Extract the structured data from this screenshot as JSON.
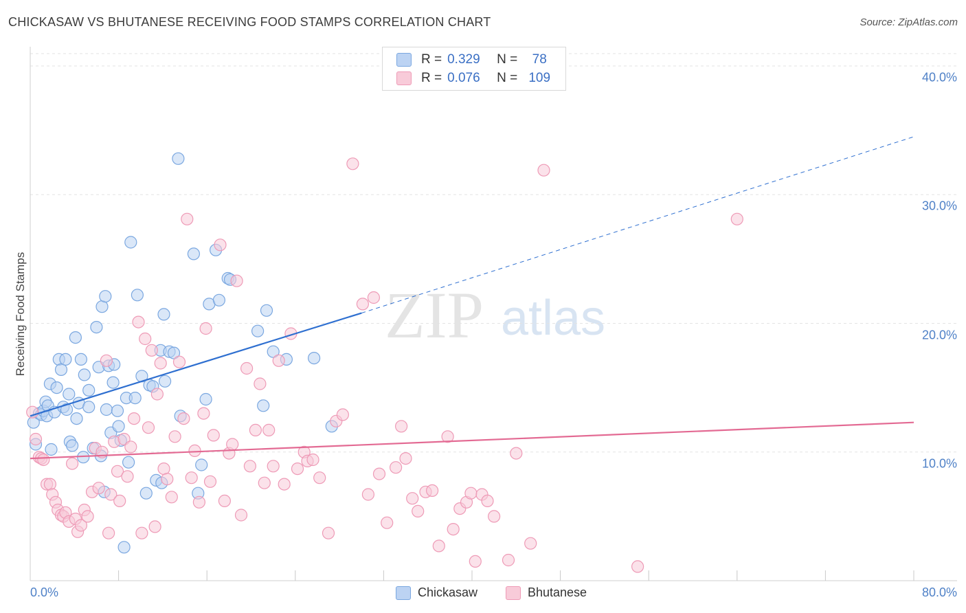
{
  "title": "CHICKASAW VS BHUTANESE RECEIVING FOOD STAMPS CORRELATION CHART",
  "source": "Source: ZipAtlas.com",
  "watermark": {
    "zip": "ZIP",
    "atlas": "atlas"
  },
  "legend": {
    "r_label": "R =",
    "n_label": "N =",
    "rows": [
      {
        "r": "0.329",
        "n": "78",
        "color": "#7aa7e0",
        "fill": "#bcd3f3"
      },
      {
        "r": "0.076",
        "n": "109",
        "color": "#ee9ab6",
        "fill": "#f8cbd9"
      }
    ]
  },
  "bottom_legend": [
    "Chickasaw",
    "Bhutanese"
  ],
  "chart_data": {
    "type": "scatter",
    "title": "CHICKASAW VS BHUTANESE RECEIVING FOOD STAMPS CORRELATION CHART",
    "xlabel": "",
    "ylabel": "Receiving Food Stamps",
    "xlim": [
      0,
      80
    ],
    "ylim": [
      0,
      40
    ],
    "x_tick_labels": [
      "0.0%",
      "80.0%"
    ],
    "y_ticks": [
      10,
      20,
      30,
      40
    ],
    "y_tick_labels": [
      "10.0%",
      "20.0%",
      "30.0%",
      "40.0%"
    ],
    "grid": true,
    "legend_position": "top-center",
    "series": [
      {
        "name": "Chickasaw",
        "color": "#7aa7e0",
        "fill": "#bcd3f3",
        "line_color": "#2e6fd0",
        "trend": {
          "x": [
            0,
            30
          ],
          "y": [
            12.8,
            20.8
          ],
          "extend_dashed_to": [
            80,
            34.5
          ]
        },
        "points": [
          [
            0.3,
            12.3
          ],
          [
            0.5,
            10.6
          ],
          [
            0.8,
            13.0
          ],
          [
            1.0,
            12.9
          ],
          [
            1.2,
            13.2
          ],
          [
            1.4,
            13.9
          ],
          [
            1.5,
            12.8
          ],
          [
            1.6,
            13.6
          ],
          [
            1.8,
            15.3
          ],
          [
            1.9,
            10.2
          ],
          [
            2.2,
            13.1
          ],
          [
            2.4,
            15.0
          ],
          [
            2.6,
            17.2
          ],
          [
            2.8,
            16.4
          ],
          [
            3.0,
            13.5
          ],
          [
            3.2,
            17.2
          ],
          [
            3.3,
            13.3
          ],
          [
            3.5,
            14.5
          ],
          [
            3.6,
            10.8
          ],
          [
            3.8,
            10.5
          ],
          [
            4.1,
            18.9
          ],
          [
            4.2,
            12.6
          ],
          [
            4.4,
            13.8
          ],
          [
            4.6,
            17.2
          ],
          [
            4.8,
            9.6
          ],
          [
            4.9,
            16.0
          ],
          [
            5.3,
            14.8
          ],
          [
            5.3,
            13.5
          ],
          [
            5.7,
            10.3
          ],
          [
            6.0,
            19.7
          ],
          [
            6.2,
            16.6
          ],
          [
            6.4,
            9.7
          ],
          [
            6.5,
            21.3
          ],
          [
            6.7,
            6.9
          ],
          [
            6.8,
            22.1
          ],
          [
            6.9,
            13.3
          ],
          [
            7.1,
            16.7
          ],
          [
            7.3,
            11.5
          ],
          [
            7.5,
            15.4
          ],
          [
            7.6,
            16.8
          ],
          [
            7.9,
            13.2
          ],
          [
            8.0,
            12.0
          ],
          [
            8.2,
            10.9
          ],
          [
            8.5,
            2.6
          ],
          [
            8.7,
            14.2
          ],
          [
            8.9,
            9.2
          ],
          [
            9.1,
            26.3
          ],
          [
            9.5,
            14.2
          ],
          [
            9.7,
            22.2
          ],
          [
            10.1,
            15.9
          ],
          [
            10.5,
            6.8
          ],
          [
            10.8,
            15.2
          ],
          [
            11.1,
            15.1
          ],
          [
            11.4,
            7.8
          ],
          [
            11.8,
            17.9
          ],
          [
            11.9,
            7.6
          ],
          [
            12.1,
            20.7
          ],
          [
            12.2,
            15.5
          ],
          [
            12.6,
            17.8
          ],
          [
            13.0,
            17.7
          ],
          [
            13.4,
            32.8
          ],
          [
            13.6,
            12.8
          ],
          [
            14.8,
            25.4
          ],
          [
            15.2,
            6.8
          ],
          [
            15.5,
            9.0
          ],
          [
            15.9,
            14.1
          ],
          [
            16.2,
            21.5
          ],
          [
            16.8,
            25.7
          ],
          [
            17.1,
            21.8
          ],
          [
            17.9,
            23.5
          ],
          [
            18.1,
            23.4
          ],
          [
            20.6,
            19.4
          ],
          [
            21.1,
            13.6
          ],
          [
            21.4,
            21.0
          ],
          [
            22.0,
            17.8
          ],
          [
            23.2,
            17.2
          ],
          [
            25.7,
            17.3
          ],
          [
            27.3,
            12.0
          ]
        ]
      },
      {
        "name": "Bhutanese",
        "color": "#ee9ab6",
        "fill": "#f8cbd9",
        "line_color": "#e36a93",
        "trend": {
          "x": [
            0,
            80
          ],
          "y": [
            9.5,
            12.3
          ]
        },
        "points": [
          [
            0.2,
            13.1
          ],
          [
            0.5,
            11.0
          ],
          [
            0.8,
            9.6
          ],
          [
            1.0,
            9.5
          ],
          [
            1.2,
            9.4
          ],
          [
            1.5,
            7.5
          ],
          [
            1.8,
            7.5
          ],
          [
            2.0,
            6.7
          ],
          [
            2.3,
            6.1
          ],
          [
            2.5,
            5.5
          ],
          [
            2.8,
            5.1
          ],
          [
            3.0,
            5.0
          ],
          [
            3.2,
            5.3
          ],
          [
            3.5,
            4.6
          ],
          [
            3.8,
            9.1
          ],
          [
            4.1,
            4.8
          ],
          [
            4.3,
            3.8
          ],
          [
            4.6,
            4.3
          ],
          [
            4.9,
            5.5
          ],
          [
            5.2,
            5.0
          ],
          [
            5.6,
            6.9
          ],
          [
            5.9,
            10.3
          ],
          [
            6.2,
            7.2
          ],
          [
            6.5,
            10.0
          ],
          [
            6.9,
            17.1
          ],
          [
            7.1,
            3.7
          ],
          [
            7.3,
            6.7
          ],
          [
            7.6,
            10.8
          ],
          [
            7.9,
            8.5
          ],
          [
            8.1,
            6.2
          ],
          [
            8.5,
            11.0
          ],
          [
            8.8,
            8.1
          ],
          [
            9.1,
            10.4
          ],
          [
            9.4,
            12.6
          ],
          [
            9.8,
            20.1
          ],
          [
            10.1,
            3.7
          ],
          [
            10.4,
            18.8
          ],
          [
            10.7,
            11.9
          ],
          [
            11.0,
            17.9
          ],
          [
            11.3,
            4.2
          ],
          [
            11.5,
            14.5
          ],
          [
            11.8,
            16.9
          ],
          [
            12.1,
            8.7
          ],
          [
            12.4,
            7.9
          ],
          [
            12.8,
            6.5
          ],
          [
            13.1,
            11.2
          ],
          [
            13.5,
            17.0
          ],
          [
            13.9,
            12.6
          ],
          [
            14.2,
            28.1
          ],
          [
            14.6,
            8.0
          ],
          [
            14.9,
            10.1
          ],
          [
            15.3,
            6.1
          ],
          [
            15.7,
            13.0
          ],
          [
            15.9,
            19.6
          ],
          [
            16.3,
            7.7
          ],
          [
            16.6,
            11.3
          ],
          [
            17.2,
            26.1
          ],
          [
            17.6,
            6.2
          ],
          [
            18.0,
            9.9
          ],
          [
            18.3,
            10.6
          ],
          [
            18.7,
            23.3
          ],
          [
            19.1,
            5.1
          ],
          [
            19.6,
            16.5
          ],
          [
            19.9,
            8.9
          ],
          [
            20.4,
            11.7
          ],
          [
            20.8,
            15.3
          ],
          [
            21.2,
            7.6
          ],
          [
            21.6,
            11.7
          ],
          [
            22.0,
            8.9
          ],
          [
            22.5,
            17.1
          ],
          [
            23.0,
            7.5
          ],
          [
            23.6,
            19.2
          ],
          [
            24.2,
            8.7
          ],
          [
            24.8,
            10.0
          ],
          [
            25.1,
            9.3
          ],
          [
            25.6,
            9.4
          ],
          [
            26.2,
            8.0
          ],
          [
            27.0,
            3.7
          ],
          [
            27.7,
            12.4
          ],
          [
            28.3,
            12.9
          ],
          [
            29.2,
            32.4
          ],
          [
            30.1,
            21.5
          ],
          [
            30.6,
            6.7
          ],
          [
            31.1,
            22.0
          ],
          [
            31.6,
            8.3
          ],
          [
            32.3,
            4.5
          ],
          [
            33.1,
            8.8
          ],
          [
            33.6,
            12.0
          ],
          [
            34.0,
            9.5
          ],
          [
            34.6,
            6.4
          ],
          [
            35.1,
            5.4
          ],
          [
            35.8,
            6.9
          ],
          [
            36.4,
            7.0
          ],
          [
            37.0,
            2.7
          ],
          [
            37.8,
            11.2
          ],
          [
            38.3,
            4.0
          ],
          [
            38.9,
            5.6
          ],
          [
            39.5,
            6.1
          ],
          [
            39.9,
            6.8
          ],
          [
            40.3,
            1.5
          ],
          [
            40.9,
            6.7
          ],
          [
            41.4,
            6.2
          ],
          [
            42.0,
            5.0
          ],
          [
            43.3,
            1.6
          ],
          [
            44.0,
            9.9
          ],
          [
            45.3,
            2.9
          ],
          [
            46.5,
            31.9
          ],
          [
            55.0,
            1.1
          ],
          [
            64.0,
            28.1
          ]
        ]
      }
    ]
  }
}
